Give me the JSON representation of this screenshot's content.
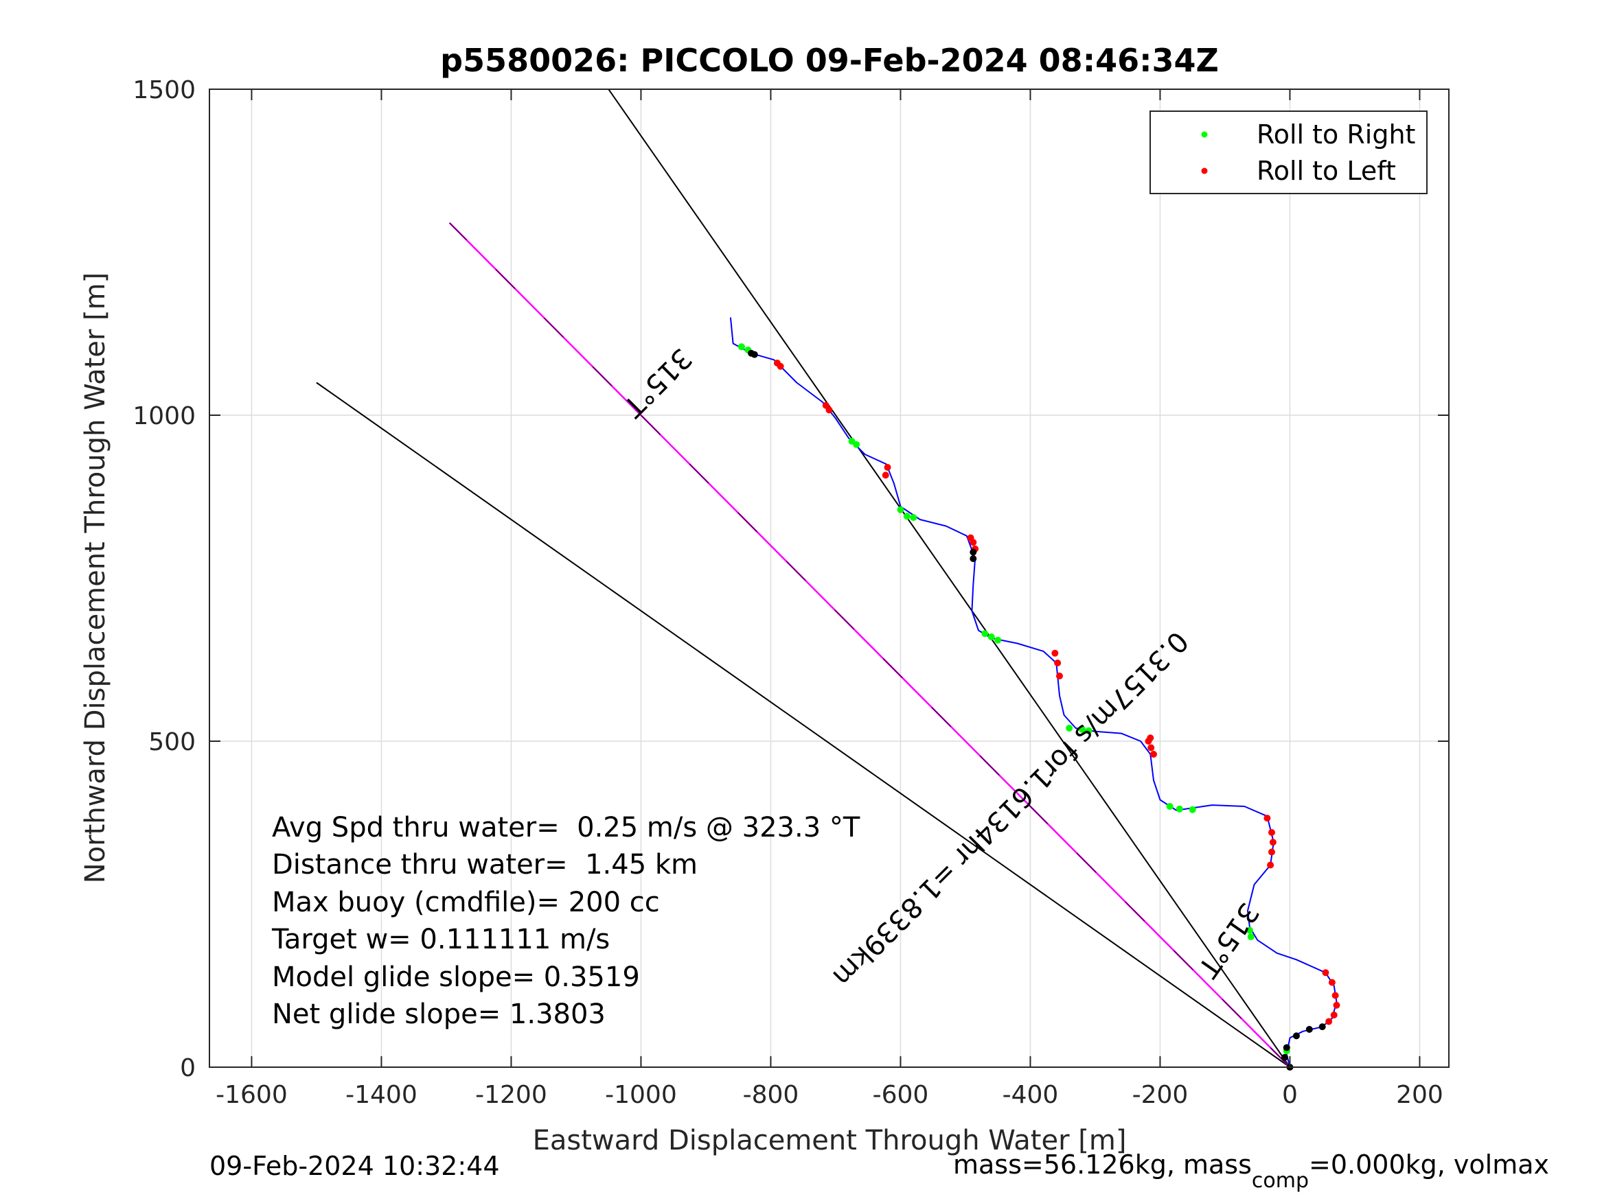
{
  "chart_data": {
    "type": "scatter",
    "title": "p5580026: PICCOLO 09-Feb-2024 08:46:34Z",
    "xlabel": "Eastward Displacement Through Water [m]",
    "ylabel": "Northward Displacement Through Water [m]",
    "xlim": [
      -1665,
      245
    ],
    "ylim": [
      0,
      1500
    ],
    "xticks": [
      -1600,
      -1400,
      -1200,
      -1000,
      -800,
      -600,
      -400,
      -200,
      0,
      200
    ],
    "yticks": [
      0,
      500,
      1000,
      1500
    ],
    "xtick_labels": [
      "-1600",
      "-1400",
      "-1200",
      "-1000",
      "-800",
      "-600",
      "-400",
      "-200",
      "0",
      "200"
    ],
    "ytick_labels": [
      "0",
      "500",
      "1000",
      "1500"
    ],
    "grid": true,
    "legend_position": "top-right",
    "legend": [
      {
        "label": "Roll to Right",
        "color": "#00ff00"
      },
      {
        "label": "Roll to Left",
        "color": "#ff0000"
      }
    ],
    "colors": {
      "track": "#0000ff",
      "roll_right": "#00ff00",
      "roll_left": "#ff0000",
      "heading_line": "#000000",
      "current_line": "#ff00ff",
      "surface": "#000000"
    },
    "track": [
      [
        0,
        0
      ],
      [
        -5,
        20
      ],
      [
        0,
        45
      ],
      [
        20,
        55
      ],
      [
        50,
        62
      ],
      [
        65,
        75
      ],
      [
        72,
        100
      ],
      [
        68,
        125
      ],
      [
        55,
        145
      ],
      [
        10,
        165
      ],
      [
        -20,
        175
      ],
      [
        -50,
        195
      ],
      [
        -62,
        215
      ],
      [
        -65,
        240
      ],
      [
        -55,
        280
      ],
      [
        -30,
        310
      ],
      [
        -25,
        345
      ],
      [
        -35,
        385
      ],
      [
        -70,
        400
      ],
      [
        -120,
        402
      ],
      [
        -175,
        394
      ],
      [
        -200,
        410
      ],
      [
        -210,
        440
      ],
      [
        -215,
        480
      ],
      [
        -230,
        500
      ],
      [
        -260,
        512
      ],
      [
        -300,
        515
      ],
      [
        -330,
        520
      ],
      [
        -348,
        540
      ],
      [
        -355,
        570
      ],
      [
        -360,
        620
      ],
      [
        -380,
        638
      ],
      [
        -420,
        650
      ],
      [
        -460,
        658
      ],
      [
        -480,
        670
      ],
      [
        -490,
        700
      ],
      [
        -488,
        740
      ],
      [
        -485,
        780
      ],
      [
        -498,
        815
      ],
      [
        -530,
        830
      ],
      [
        -570,
        840
      ],
      [
        -600,
        860
      ],
      [
        -610,
        895
      ],
      [
        -622,
        925
      ],
      [
        -655,
        940
      ],
      [
        -680,
        965
      ],
      [
        -700,
        995
      ],
      [
        -720,
        1020
      ],
      [
        -760,
        1050
      ],
      [
        -795,
        1085
      ],
      [
        -830,
        1095
      ],
      [
        -858,
        1110
      ],
      [
        -862,
        1150
      ]
    ],
    "roll_right_points": [
      [
        -5,
        25
      ],
      [
        -60,
        200
      ],
      [
        -62,
        210
      ],
      [
        -150,
        395
      ],
      [
        -170,
        396
      ],
      [
        -185,
        400
      ],
      [
        -340,
        520
      ],
      [
        -320,
        518
      ],
      [
        -310,
        516
      ],
      [
        -470,
        665
      ],
      [
        -460,
        660
      ],
      [
        -450,
        655
      ],
      [
        -590,
        845
      ],
      [
        -580,
        843
      ],
      [
        -600,
        855
      ],
      [
        -675,
        960
      ],
      [
        -668,
        955
      ],
      [
        -845,
        1105
      ],
      [
        -835,
        1100
      ]
    ],
    "roll_left_points": [
      [
        55,
        145
      ],
      [
        65,
        130
      ],
      [
        70,
        110
      ],
      [
        72,
        95
      ],
      [
        68,
        80
      ],
      [
        60,
        70
      ],
      [
        -30,
        310
      ],
      [
        -28,
        330
      ],
      [
        -26,
        345
      ],
      [
        -28,
        360
      ],
      [
        -35,
        382
      ],
      [
        -210,
        480
      ],
      [
        -214,
        490
      ],
      [
        -218,
        500
      ],
      [
        -215,
        505
      ],
      [
        -355,
        600
      ],
      [
        -358,
        620
      ],
      [
        -362,
        635
      ],
      [
        -485,
        795
      ],
      [
        -488,
        805
      ],
      [
        -492,
        812
      ],
      [
        -620,
        920
      ],
      [
        -623,
        908
      ],
      [
        -715,
        1015
      ],
      [
        -710,
        1008
      ],
      [
        -790,
        1080
      ],
      [
        -785,
        1075
      ]
    ],
    "surface_points": [
      [
        0,
        0
      ],
      [
        -8,
        15
      ],
      [
        -5,
        30
      ],
      [
        10,
        48
      ],
      [
        30,
        58
      ],
      [
        50,
        62
      ],
      [
        -488,
        780
      ],
      [
        -488,
        790
      ],
      [
        -830,
        1095
      ],
      [
        -825,
        1093
      ]
    ],
    "heading_lines": [
      {
        "from": [
          0,
          0
        ],
        "to": [
          -1050,
          1500
        ],
        "label": "315°T"
      },
      {
        "from": [
          0,
          0
        ],
        "to": [
          -1500,
          1050
        ],
        "label": ""
      }
    ],
    "current_line": {
      "from": [
        0,
        0
      ],
      "to": [
        -1295,
        1295
      ],
      "label": "0.3157m/s for1.6134hr =1.8339km"
    },
    "current_heading_label": "315°T",
    "stats": [
      "Avg Spd thru water=  0.25 m/s @ 323.3 °T",
      "Distance thru water=  1.45 km",
      "Max buoy (cmdfile)= 200 cc",
      "Target w= 0.111111 m/s",
      "Model glide slope= 0.3519",
      "Net glide slope= 1.3803"
    ],
    "footer_left": "09-Feb-2024 10:32:44",
    "footer_right": {
      "prefix": "mass=56.126kg, mass",
      "subscript": "comp",
      "suffix": "=0.000kg, volmax"
    }
  }
}
